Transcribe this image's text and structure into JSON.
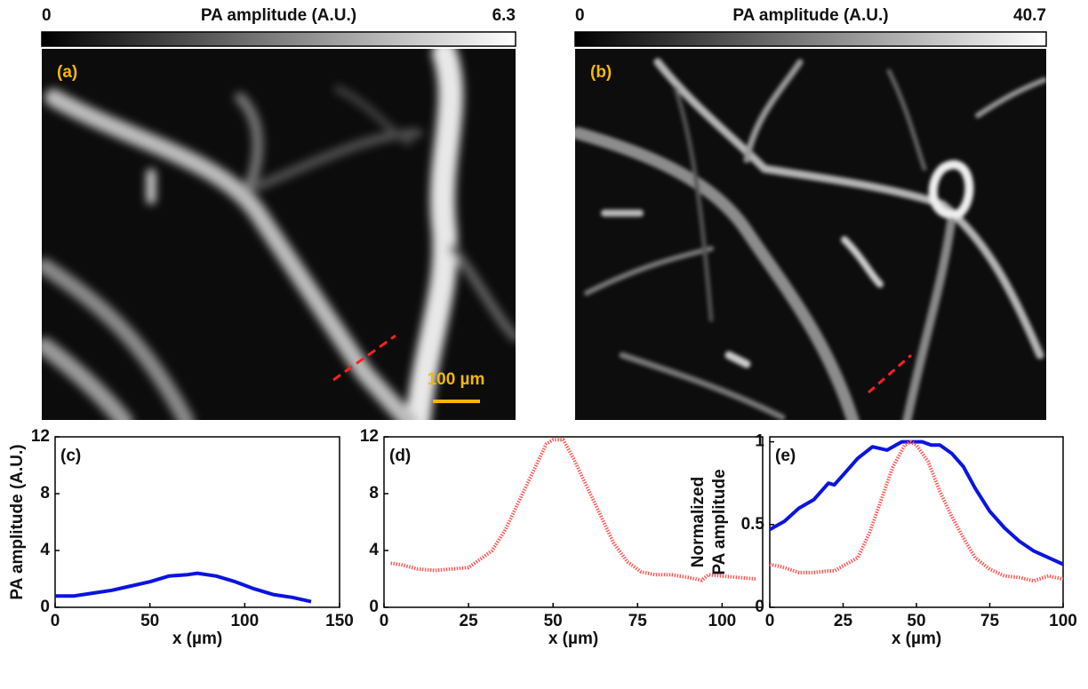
{
  "chart_data": [
    {
      "type": "image",
      "panel_label": "(a)",
      "colorbar": {
        "title": "PA amplitude (A.U.)",
        "min": 0,
        "max": 6.3
      },
      "scale_bar": "100 µm"
    },
    {
      "type": "image",
      "panel_label": "(b)",
      "colorbar": {
        "title": "PA amplitude (A.U.)",
        "min": 0,
        "max": 40.7
      }
    },
    {
      "type": "line",
      "panel_label": "(c)",
      "y_label": "PA amplitude (A.U.)",
      "x_label": "x (µm)",
      "xlim": [
        0,
        150
      ],
      "xticks": [
        0,
        50,
        100,
        150
      ],
      "ylim": [
        0,
        12
      ],
      "yticks": [
        0,
        4,
        8,
        12
      ],
      "series": [
        {
          "color": "#0a14e0",
          "style": "solid",
          "x": [
            0,
            10,
            20,
            30,
            40,
            50,
            60,
            70,
            75,
            85,
            95,
            105,
            115,
            125,
            135
          ],
          "values": [
            0.8,
            0.8,
            1.0,
            1.2,
            1.5,
            1.8,
            2.2,
            2.3,
            2.4,
            2.2,
            1.8,
            1.3,
            0.9,
            0.7,
            0.4
          ]
        }
      ]
    },
    {
      "type": "line",
      "panel_label": "(d)",
      "x_label": "x (µm)",
      "xlim": [
        0,
        112
      ],
      "xticks": [
        0,
        25,
        50,
        75,
        100
      ],
      "ylim": [
        0,
        12
      ],
      "yticks": [
        0,
        4,
        8,
        12
      ],
      "series": [
        {
          "color": "#ff5a5a",
          "style": "dotted",
          "x": [
            2,
            5,
            10,
            15,
            20,
            25,
            28,
            32,
            36,
            40,
            44,
            48,
            50,
            53,
            56,
            60,
            64,
            68,
            72,
            76,
            80,
            85,
            90,
            94,
            96,
            100,
            105,
            110
          ],
          "values": [
            3.1,
            3.0,
            2.7,
            2.6,
            2.7,
            2.8,
            3.3,
            4.0,
            5.5,
            7.5,
            9.5,
            11.5,
            11.8,
            11.8,
            10.5,
            8.5,
            6.5,
            4.5,
            3.2,
            2.5,
            2.3,
            2.3,
            2.1,
            1.9,
            2.3,
            2.2,
            2.1,
            2.0
          ]
        }
      ]
    },
    {
      "type": "line",
      "panel_label": "(e)",
      "y_label": [
        "Normalized",
        "PA amplitude"
      ],
      "x_label": "x (µm)",
      "xlim": [
        0,
        100
      ],
      "xticks": [
        0,
        25,
        50,
        75,
        100
      ],
      "ylim": [
        0,
        1.03
      ],
      "yticks": [
        0,
        0.5,
        1
      ],
      "series": [
        {
          "color": "#0a14e0",
          "style": "solid",
          "x": [
            0,
            5,
            10,
            15,
            20,
            22,
            25,
            30,
            35,
            40,
            45,
            48,
            52,
            55,
            58,
            62,
            66,
            70,
            75,
            80,
            85,
            90,
            95,
            100
          ],
          "values": [
            0.47,
            0.52,
            0.6,
            0.65,
            0.75,
            0.74,
            0.8,
            0.9,
            0.97,
            0.95,
            1.0,
            1.0,
            1.0,
            0.98,
            0.98,
            0.93,
            0.85,
            0.72,
            0.58,
            0.48,
            0.4,
            0.34,
            0.3,
            0.26
          ]
        },
        {
          "color": "#ff5a5a",
          "style": "dotted",
          "x": [
            0,
            5,
            10,
            15,
            20,
            22,
            25,
            30,
            34,
            38,
            42,
            46,
            48,
            50,
            54,
            58,
            62,
            66,
            70,
            75,
            80,
            85,
            90,
            95,
            100
          ],
          "values": [
            0.26,
            0.24,
            0.21,
            0.21,
            0.22,
            0.22,
            0.25,
            0.3,
            0.45,
            0.65,
            0.85,
            0.98,
            1.0,
            0.98,
            0.88,
            0.7,
            0.55,
            0.42,
            0.3,
            0.23,
            0.19,
            0.18,
            0.16,
            0.19,
            0.17
          ]
        }
      ]
    }
  ]
}
